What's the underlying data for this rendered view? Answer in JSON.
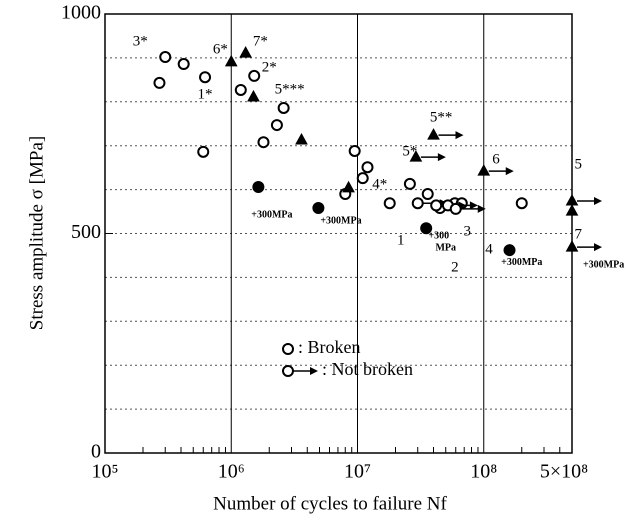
{
  "chart_data": {
    "type": "scatter",
    "xlabel": "Number of cycles to failure Nf",
    "ylabel": "Stress amplitude σ  [MPa]",
    "xscale": "log",
    "xlim": [
      100000,
      500000000
    ],
    "ylim": [
      0,
      1000
    ],
    "xticks": [
      {
        "value": 100000,
        "label": "10⁵"
      },
      {
        "value": 1000000,
        "label": "10⁶"
      },
      {
        "value": 10000000,
        "label": "10⁷"
      },
      {
        "value": 100000000,
        "label": "10⁸"
      },
      {
        "value": 500000000,
        "label": "5×10⁸"
      }
    ],
    "yticks": [
      0,
      500,
      1000
    ],
    "ygrid": [
      100,
      200,
      300,
      400,
      500,
      600,
      700,
      800,
      900
    ],
    "series": [
      {
        "name": ": Broken",
        "marker": "circle",
        "filled": false,
        "arrow": false,
        "color": "#000000",
        "x": [
          270000,
          300000,
          420000,
          620000,
          600000,
          1190000,
          1520000,
          1800000,
          2300000,
          2600000,
          9500000,
          8000000,
          11000000,
          12000000,
          26000000,
          18000000,
          36000000,
          45000000,
          59000000,
          67000000,
          200000000
        ],
        "y": [
          843,
          902,
          886,
          856,
          686,
          827,
          859,
          708,
          747,
          786,
          688,
          590,
          626,
          651,
          613,
          569,
          590,
          558,
          569,
          569,
          569
        ]
      },
      {
        "name": ": Not broken",
        "marker": "circle",
        "filled": false,
        "arrow": true,
        "color": "#000000",
        "x": [
          30000000,
          42000000,
          52000000,
          60000000
        ],
        "y": [
          569,
          564,
          564,
          556
        ]
      },
      {
        "marker": "triangle",
        "filled": true,
        "arrow": false,
        "color": "#000000",
        "x": [
          1000000,
          1300000,
          1500000,
          3600000,
          8500000,
          500000000
        ],
        "y": [
          891,
          911,
          811,
          713,
          604,
          551
        ]
      },
      {
        "marker": "triangle",
        "filled": true,
        "arrow": true,
        "color": "#000000",
        "x": [
          40000000,
          29000000,
          100000000,
          500000000,
          500000000
        ],
        "y": [
          724,
          674,
          642,
          574,
          469
        ]
      },
      {
        "marker": "circle",
        "filled": true,
        "arrow": false,
        "color": "#000000",
        "x": [
          1640000,
          4900000,
          35000000,
          160000000
        ],
        "y": [
          606,
          558,
          512,
          462
        ]
      }
    ],
    "annotations": [
      {
        "text": "3*",
        "x": 190000,
        "y": 936
      },
      {
        "text": "6*",
        "x": 820000,
        "y": 918
      },
      {
        "text": "7*",
        "x": 1700000,
        "y": 936
      },
      {
        "text": "2*",
        "x": 2000000,
        "y": 877
      },
      {
        "text": "1*",
        "x": 620000,
        "y": 815
      },
      {
        "text": "5***",
        "x": 2900000,
        "y": 827
      },
      {
        "text": "5**",
        "x": 46000000,
        "y": 763
      },
      {
        "text": "5*",
        "x": 26000000,
        "y": 686
      },
      {
        "text": "4*",
        "x": 15000000,
        "y": 610
      },
      {
        "text": "6",
        "x": 125000000,
        "y": 667
      },
      {
        "text": "5",
        "x": 560000000,
        "y": 656
      },
      {
        "text": "7",
        "x": 560000000,
        "y": 497
      },
      {
        "text": "1",
        "x": 22000000,
        "y": 483
      },
      {
        "text": "2",
        "x": 59000000,
        "y": 421
      },
      {
        "text": "3",
        "x": 74000000,
        "y": 503
      },
      {
        "text": "4",
        "x": 110000000,
        "y": 462
      },
      {
        "text": "+300MPa",
        "x": 2100000,
        "y": 542,
        "bold": true
      },
      {
        "text": "+300MPa",
        "x": 7400000,
        "y": 528,
        "bold": true
      },
      {
        "text": "+300",
        "x": 44000000,
        "y": 494,
        "bold": true
      },
      {
        "text": "MPa",
        "x": 50000000,
        "y": 467,
        "bold": true
      },
      {
        "text": "+300MPa",
        "x": 200000000,
        "y": 433,
        "bold": true
      },
      {
        "text": "+300MPa",
        "x": 890000000,
        "y": 428,
        "bold": true
      }
    ]
  }
}
